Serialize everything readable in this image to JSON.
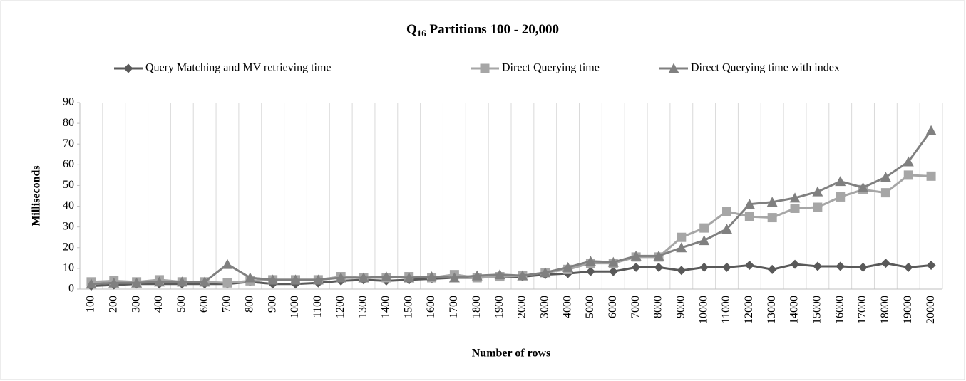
{
  "chart_data": {
    "type": "line",
    "title": {
      "main": "Q",
      "subscript": "16",
      "rest": " Partitions 100 - 20,000"
    },
    "x_label": "Number of rows",
    "y_label": "Milliseconds",
    "categories": [
      "100",
      "200",
      "300",
      "400",
      "500",
      "600",
      "700",
      "800",
      "900",
      "1000",
      "1100",
      "1200",
      "1300",
      "1400",
      "1500",
      "1600",
      "1700",
      "1800",
      "1900",
      "2000",
      "3000",
      "4000",
      "5000",
      "6000",
      "7000",
      "8000",
      "9000",
      "10000",
      "11000",
      "12000",
      "13000",
      "14000",
      "15000",
      "16000",
      "17000",
      "18000",
      "19000",
      "20000"
    ],
    "series": [
      {
        "name": "Query Matching  and MV retrieving time",
        "color": "#595959",
        "marker": "diamond",
        "values": [
          1.5,
          2,
          2.5,
          2.5,
          2.5,
          2.5,
          2.5,
          3.5,
          2.5,
          2.5,
          3,
          4,
          4.5,
          4,
          4.5,
          5,
          5.5,
          5.5,
          6,
          6,
          7,
          7.5,
          8.5,
          8.5,
          10.5,
          10.5,
          9,
          10.5,
          10.5,
          11.5,
          9.5,
          12,
          11,
          11,
          10.5,
          12.5,
          10.5,
          11.5
        ]
      },
      {
        "name": "Direct Querying time",
        "color": "#a6a6a6",
        "marker": "square",
        "values": [
          3.5,
          4,
          3.5,
          4.5,
          3.5,
          3.5,
          3,
          4,
          4.5,
          4.5,
          4.5,
          6,
          5.5,
          5.5,
          6,
          5.5,
          7,
          5.5,
          6,
          6.5,
          8,
          9.5,
          12.5,
          12.5,
          15.5,
          15.5,
          25,
          29.5,
          37.5,
          35,
          34.5,
          39,
          39.5,
          44.5,
          48,
          46.5,
          55,
          54.5
        ]
      },
      {
        "name": "Direct Querying time with index",
        "color": "#808080",
        "marker": "triangle",
        "values": [
          2.5,
          3,
          3,
          3.5,
          3.5,
          3.5,
          12,
          5.5,
          4.5,
          4.5,
          4.5,
          5.5,
          5.5,
          6,
          5.5,
          6,
          5.5,
          6.5,
          7,
          6.5,
          8,
          10.5,
          13.5,
          13,
          16,
          16,
          20,
          23.5,
          29,
          41,
          42,
          44,
          47,
          52,
          49,
          54,
          61.5,
          76.5
        ]
      }
    ],
    "ylim": [
      0,
      90
    ],
    "yticks": [
      0,
      10,
      20,
      30,
      40,
      50,
      60,
      70,
      80,
      90
    ],
    "grid": "vertical"
  }
}
